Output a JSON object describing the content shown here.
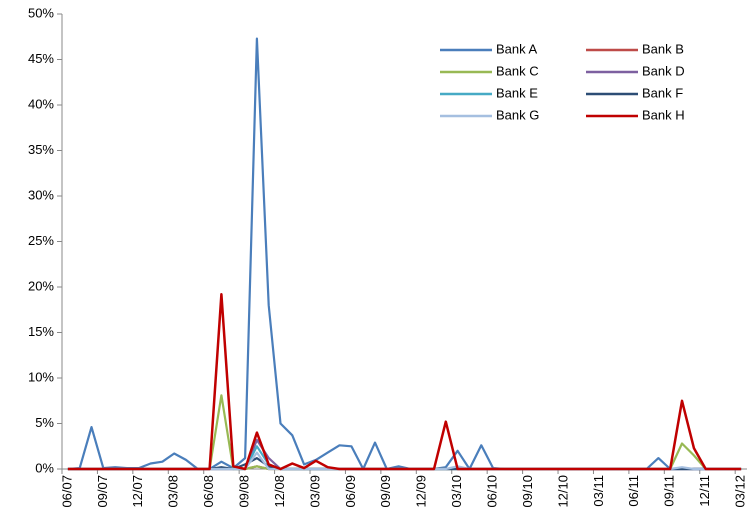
{
  "chart_data": {
    "type": "line",
    "categories": [
      "06/07",
      null,
      null,
      "09/07",
      null,
      null,
      "12/07",
      null,
      null,
      "03/08",
      null,
      null,
      "06/08",
      null,
      null,
      "09/08",
      null,
      null,
      "12/08",
      null,
      null,
      "03/09",
      null,
      null,
      "06/09",
      null,
      null,
      "09/09",
      null,
      null,
      "12/09",
      null,
      null,
      "03/10",
      null,
      null,
      "06/10",
      null,
      null,
      "09/10",
      null,
      null,
      "12/10",
      null,
      null,
      "03/11",
      null,
      null,
      "06/11",
      null,
      null,
      "09/11",
      null,
      null,
      "12/11",
      null,
      null,
      "03/12"
    ],
    "ylim": [
      0,
      50
    ],
    "yticks": [
      {
        "value": 0,
        "label": "0%"
      },
      {
        "value": 5,
        "label": "5%"
      },
      {
        "value": 10,
        "label": "10%"
      },
      {
        "value": 15,
        "label": "15%"
      },
      {
        "value": 20,
        "label": "20%"
      },
      {
        "value": 25,
        "label": "25%"
      },
      {
        "value": 30,
        "label": "30%"
      },
      {
        "value": 35,
        "label": "35%"
      },
      {
        "value": 40,
        "label": "40%"
      },
      {
        "value": 45,
        "label": "45%"
      },
      {
        "value": 50,
        "label": "50%"
      }
    ],
    "legend": "upper right",
    "series": [
      {
        "name": "Bank A",
        "color": "#4a7ebb",
        "values": [
          0,
          0.1,
          4.6,
          0.1,
          0.2,
          0.1,
          0.1,
          0.6,
          0.8,
          1.7,
          1.0,
          0,
          0,
          0.8,
          0.1,
          1.2,
          47.3,
          18,
          5,
          3.7,
          0.5,
          1.0,
          1.8,
          2.6,
          2.5,
          0,
          2.9,
          0,
          0.3,
          0,
          0,
          0,
          0.2,
          2.0,
          0,
          2.6,
          0.1,
          0,
          0,
          0,
          0,
          0,
          0,
          0,
          0,
          0,
          0,
          0,
          0,
          0,
          1.2,
          0,
          0,
          0,
          0,
          0,
          0,
          0
        ]
      },
      {
        "name": "Bank B",
        "color": "#be4b48",
        "values": [
          0,
          0,
          0,
          0,
          0,
          0,
          0,
          0,
          0,
          0,
          0,
          0,
          0,
          0,
          0,
          0,
          0.3,
          0,
          0,
          0,
          0,
          0,
          0,
          0,
          0,
          0,
          0,
          0,
          0,
          0,
          0,
          0,
          0,
          0,
          0,
          0,
          0,
          0,
          0,
          0,
          0,
          0,
          0,
          0,
          0,
          0,
          0,
          0,
          0,
          0,
          0,
          0,
          0,
          0,
          0,
          0,
          0,
          0
        ]
      },
      {
        "name": "Bank C",
        "color": "#98b954",
        "values": [
          0,
          0,
          0,
          0,
          0,
          0,
          0,
          0,
          0,
          0,
          0,
          0,
          0,
          8.1,
          0,
          0,
          0.3,
          0,
          0,
          0,
          0,
          0,
          0,
          0,
          0,
          0,
          0,
          0,
          0,
          0,
          0,
          0,
          0,
          0,
          0,
          0,
          0,
          0,
          0,
          0,
          0,
          0,
          0,
          0,
          0,
          0,
          0,
          0,
          0,
          0,
          0,
          0,
          2.8,
          1.5,
          0,
          0,
          0,
          0
        ]
      },
      {
        "name": "Bank D",
        "color": "#7d60a0",
        "values": [
          0,
          0,
          0,
          0,
          0,
          0,
          0,
          0,
          0,
          0,
          0,
          0,
          0,
          0,
          0,
          0,
          3.2,
          1.2,
          0,
          0,
          0,
          0,
          0,
          0,
          0,
          0,
          0,
          0,
          0,
          0,
          0,
          0,
          0,
          0,
          0,
          0,
          0,
          0,
          0,
          0,
          0,
          0,
          0,
          0,
          0,
          0,
          0,
          0,
          0,
          0,
          0,
          0,
          0,
          0,
          0,
          0,
          0,
          0
        ]
      },
      {
        "name": "Bank E",
        "color": "#46aac5",
        "values": [
          0,
          0,
          0,
          0,
          0,
          0,
          0,
          0,
          0,
          0,
          0,
          0,
          0,
          0,
          0,
          0,
          2.5,
          0.5,
          0,
          0,
          0,
          0,
          0,
          0,
          0,
          0,
          0,
          0,
          0,
          0,
          0,
          0,
          0,
          0,
          0,
          0,
          0,
          0,
          0,
          0,
          0,
          0,
          0,
          0,
          0,
          0,
          0,
          0,
          0,
          0,
          0,
          0,
          0,
          0,
          0,
          0,
          0,
          0
        ]
      },
      {
        "name": "Bank F",
        "color": "#2c4d75",
        "values": [
          0,
          0,
          0,
          0,
          0,
          0,
          0,
          0,
          0,
          0,
          0,
          0,
          0,
          0.2,
          0,
          0.5,
          1.2,
          0.3,
          0,
          0,
          0,
          0,
          0,
          0,
          0,
          0,
          0,
          0,
          0,
          0,
          0,
          0,
          0,
          0,
          0,
          0,
          0,
          0,
          0,
          0,
          0,
          0,
          0,
          0,
          0,
          0,
          0,
          0,
          0,
          0,
          0,
          0,
          0,
          0,
          0,
          0,
          0,
          0
        ]
      },
      {
        "name": "Bank G",
        "color": "#a5bfe0",
        "values": [
          0,
          0,
          0,
          0,
          0,
          0,
          0,
          0,
          0,
          0,
          0,
          0,
          0,
          0,
          0,
          0,
          1.8,
          0,
          0,
          0,
          0,
          0,
          0,
          0,
          0,
          0,
          0,
          0,
          0,
          0,
          0,
          0,
          0,
          0.3,
          0,
          0,
          0,
          0,
          0,
          0,
          0,
          0,
          0,
          0,
          0,
          0,
          0,
          0,
          0,
          0,
          0,
          0,
          0.2,
          0,
          0,
          0,
          0,
          0
        ]
      },
      {
        "name": "Bank H",
        "color": "#c00000",
        "values": [
          0,
          0,
          0,
          0,
          0,
          0,
          0,
          0,
          0,
          0,
          0,
          0,
          0,
          19.2,
          0.3,
          0,
          4.0,
          0.5,
          0,
          0.6,
          0.1,
          0.9,
          0.2,
          0,
          0,
          0,
          0,
          0,
          0,
          0,
          0,
          0,
          5.2,
          0,
          0,
          0,
          0,
          0,
          0,
          0,
          0,
          0,
          0,
          0,
          0,
          0,
          0,
          0,
          0,
          0,
          0,
          0,
          7.5,
          2.3,
          0,
          0,
          0,
          0
        ]
      }
    ]
  }
}
